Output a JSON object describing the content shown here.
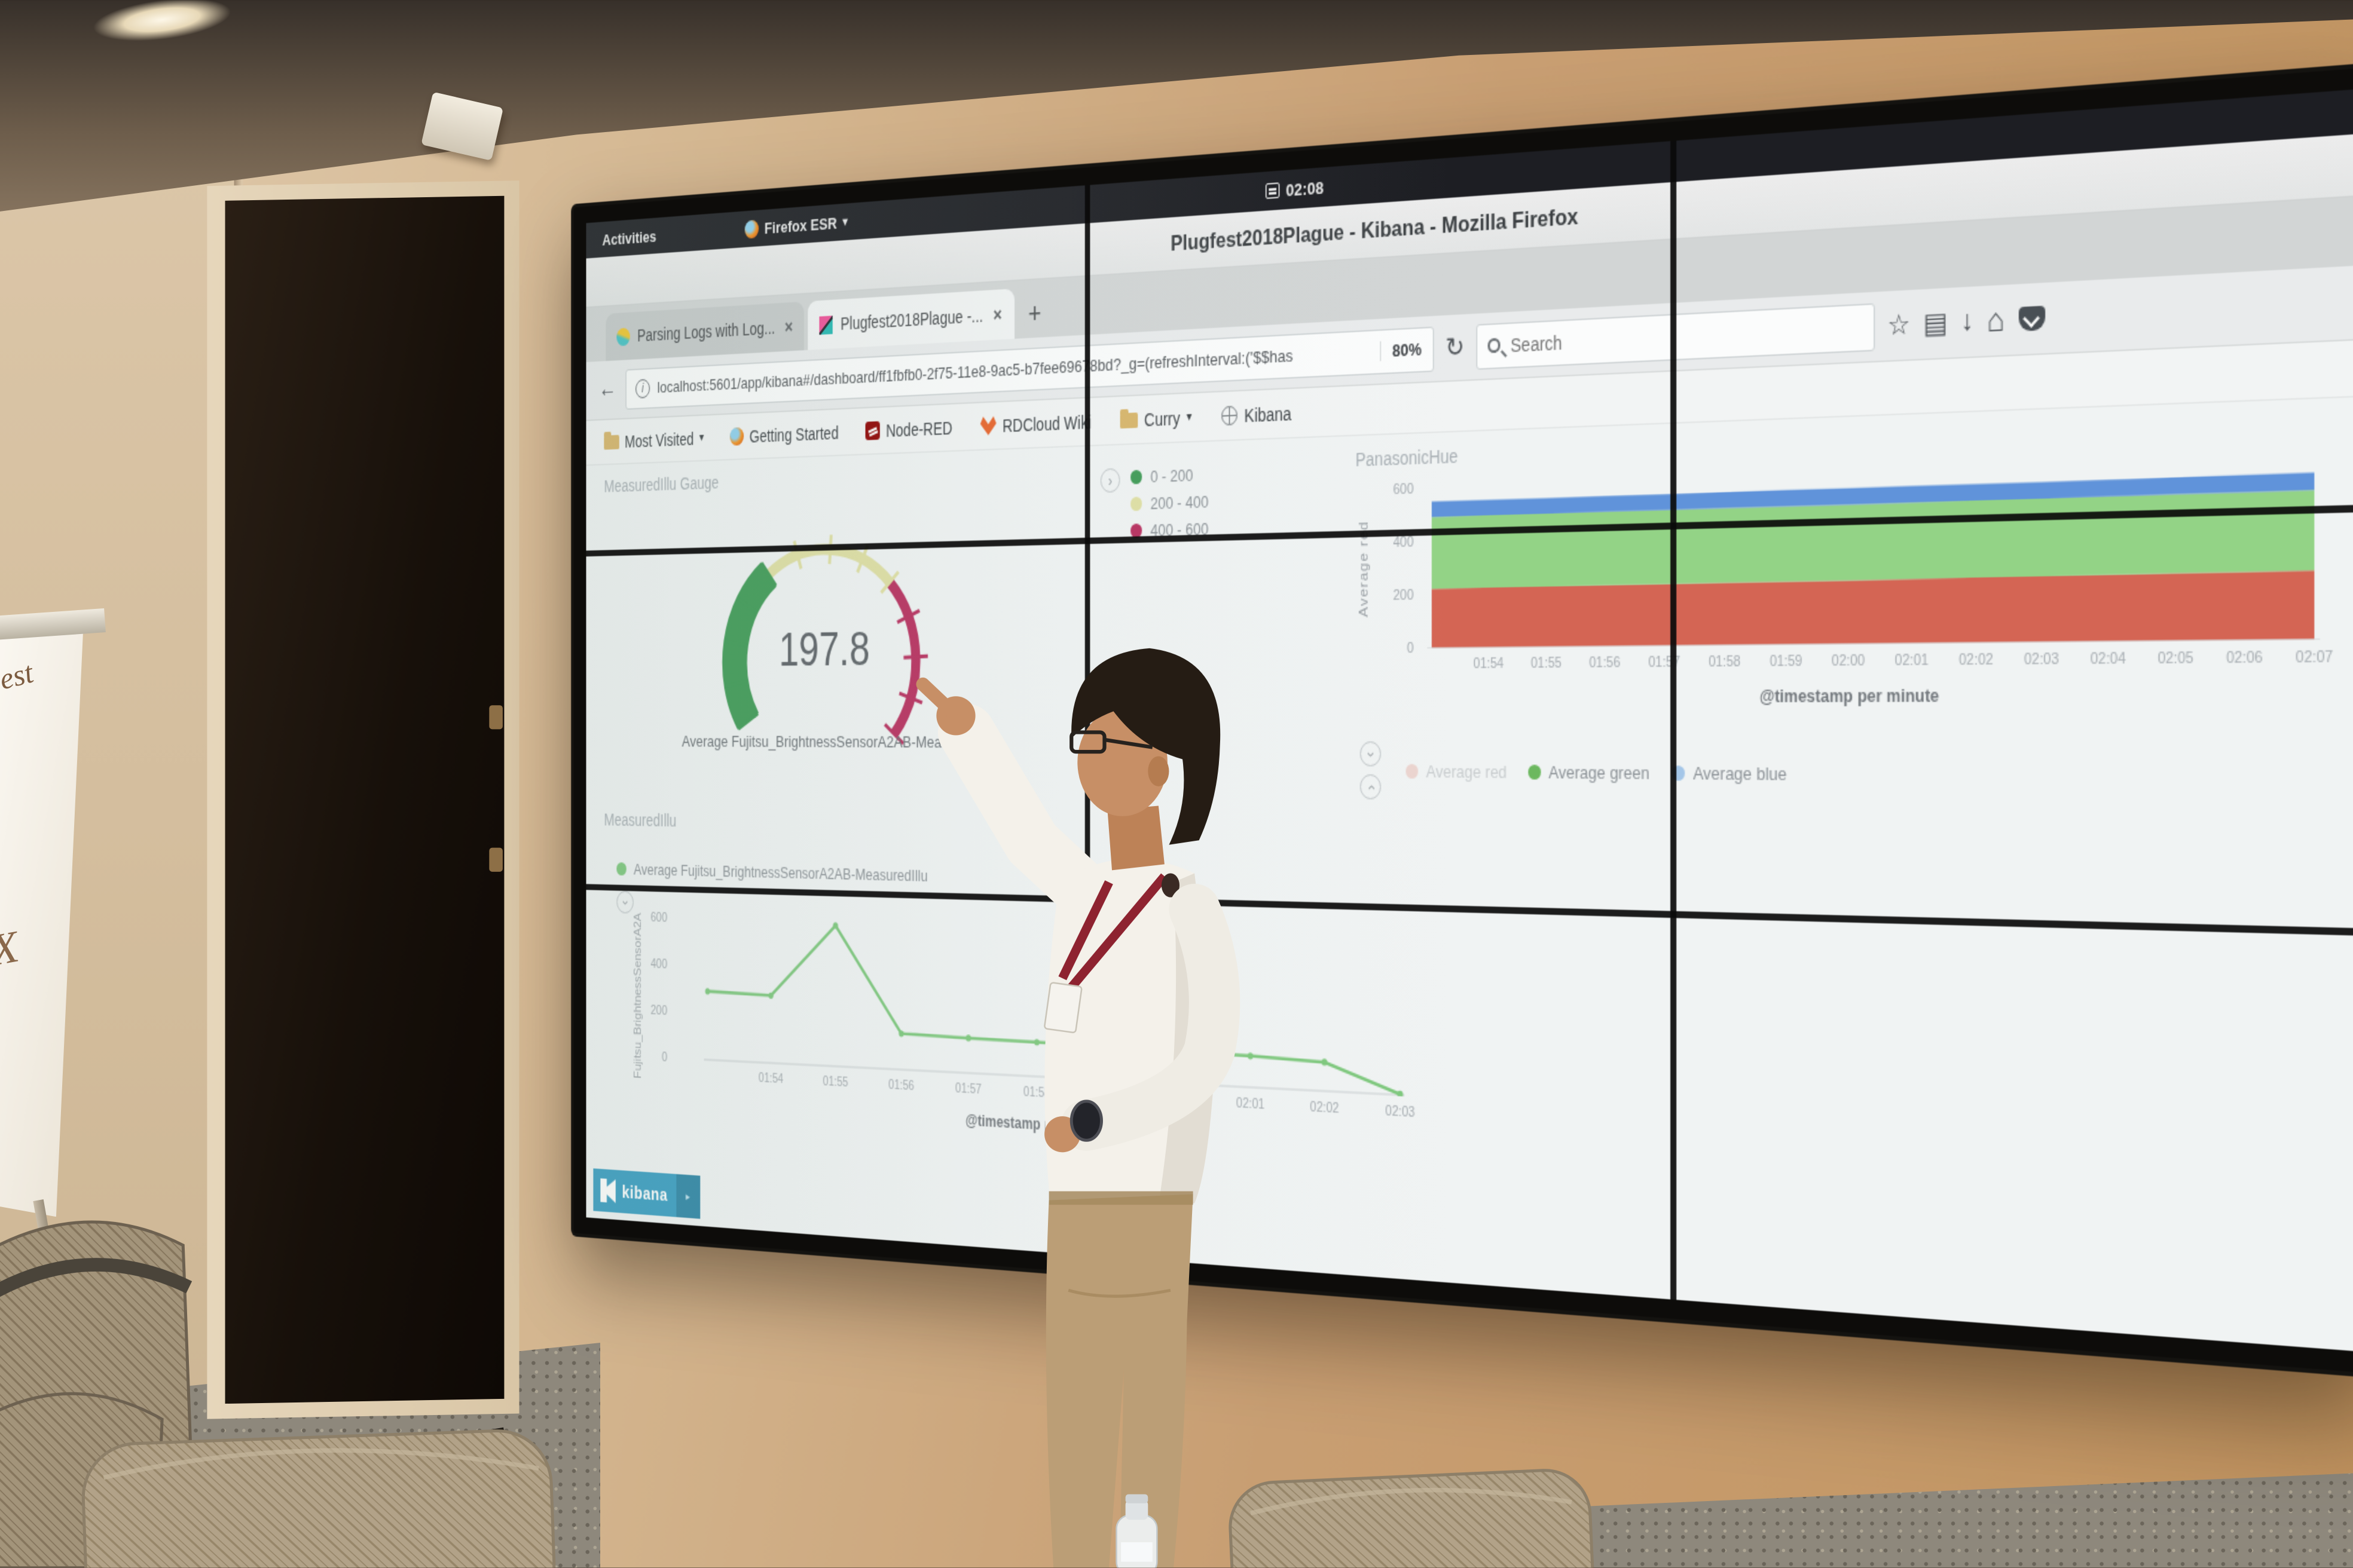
{
  "scene": {
    "flipchart": {
      "line1": "est",
      "line2": "X"
    }
  },
  "top_bar": {
    "activities_label": "Activities",
    "browser_menu_label": "Firefox ESR",
    "menu_caret": "▾",
    "clock": "02:08"
  },
  "window": {
    "title": "Plugfest2018Plague - Kibana - Mozilla Firefox"
  },
  "browser": {
    "tabs": [
      {
        "label": "Parsing Logs with Log...",
        "close": "×"
      },
      {
        "label": "Plugfest2018Plague -...",
        "close": "×"
      }
    ],
    "new_tab_label": "+",
    "back_glyph": "←",
    "reload_glyph": "↻",
    "info_glyph": "i",
    "url": "localhost:5601/app/kibana#/dashboard/ff1fbfb0-2f75-11e8-9ac5-b7fee69678bd?_g=(refreshInterval:('$$has",
    "zoom_level": "80%",
    "search_placeholder": "Search",
    "toolbar_icons": {
      "star": "☆",
      "library": "▤",
      "download": "↓",
      "home": "⌂"
    },
    "bookmarks": [
      {
        "label": "Most Visited",
        "caret": "▾"
      },
      {
        "label": "Getting Started",
        "caret": ""
      },
      {
        "label": "Node-RED",
        "caret": ""
      },
      {
        "label": "RDCloud Wiki",
        "caret": ""
      },
      {
        "label": "Curry",
        "caret": "▾"
      },
      {
        "label": "Kibana",
        "caret": ""
      }
    ]
  },
  "dashboard": {
    "gauge_panel": {
      "title": "MeasuredIllu Gauge",
      "value": "197.8",
      "metric_label": "Average Fujitsu_BrightnessSensorA2AB-MeasuredIllu",
      "legend": [
        {
          "label": "0 - 200",
          "color": "#3e9a55"
        },
        {
          "label": "200 - 400",
          "color": "#dfdfa3"
        },
        {
          "label": "400 - 600",
          "color": "#b82e5e"
        }
      ]
    },
    "hue_panel": {
      "title": "PanasonicHue",
      "ylabel": "Average red",
      "yticks": [
        "600",
        "400",
        "200",
        "0"
      ],
      "xticks": [
        "01:54",
        "01:55",
        "01:56",
        "01:57",
        "01:58",
        "01:59",
        "02:00",
        "02:01",
        "02:02",
        "02:03",
        "02:04",
        "02:05",
        "02:06",
        "02:07"
      ],
      "xlabel": "@timestamp per minute",
      "legend": [
        {
          "label": "Average red",
          "color": "#e5a79b"
        },
        {
          "label": "Average green",
          "color": "#6cb85f"
        },
        {
          "label": "Average blue",
          "color": "#a4c6e8"
        }
      ]
    },
    "line_panel": {
      "title": "MeasuredIllu",
      "legend_label": "Average Fujitsu_BrightnessSensorA2AB-MeasuredIllu",
      "legend_color": "#7ec87d",
      "ylabel": "Fujitsu_BrightnessSensorA2A",
      "yticks": [
        "600",
        "400",
        "200",
        "0"
      ],
      "xticks": [
        "01:54",
        "01:55",
        "01:56",
        "01:57",
        "01:58",
        "01:59",
        "02:00",
        "02:01",
        "02:02",
        "02:03"
      ],
      "xlabel": "@timestamp per minute"
    },
    "kibana_logo_text": "kibana"
  },
  "chart_data": [
    {
      "type": "gauge",
      "title": "MeasuredIllu Gauge",
      "metric": "Average Fujitsu_BrightnessSensorA2AB-MeasuredIllu",
      "value": 197.8,
      "min": 0,
      "max": 600,
      "ranges": [
        {
          "from": 0,
          "to": 200,
          "color": "#3e9a55"
        },
        {
          "from": 200,
          "to": 400,
          "color": "#dfdfa3"
        },
        {
          "from": 400,
          "to": 600,
          "color": "#b82e5e"
        }
      ]
    },
    {
      "type": "area",
      "stacked": true,
      "title": "PanasonicHue",
      "x": [
        "01:53",
        "01:54",
        "01:55",
        "01:56",
        "01:57",
        "01:58",
        "01:59",
        "02:00",
        "02:01",
        "02:02",
        "02:03",
        "02:04",
        "02:05",
        "02:06",
        "02:07"
      ],
      "series": [
        {
          "name": "Average red",
          "color": "#d25f4d",
          "values": [
            224,
            225,
            225,
            226,
            226,
            227,
            228,
            228,
            229,
            230,
            230,
            231,
            232,
            233,
            234
          ]
        },
        {
          "name": "Average green",
          "color": "#8fd181",
          "values": [
            270,
            270,
            270,
            270,
            270,
            270,
            270,
            270,
            270,
            270,
            270,
            270,
            270,
            270,
            270
          ]
        },
        {
          "name": "Average blue",
          "color": "#5a8fd8",
          "values": [
            58,
            58,
            58,
            58,
            58,
            58,
            58,
            58,
            58,
            58,
            58,
            58,
            58,
            58,
            58
          ]
        }
      ],
      "ylabel": "Average red",
      "xlabel": "@timestamp per minute",
      "ylim": [
        0,
        600
      ],
      "legend_position": "bottom"
    },
    {
      "type": "line",
      "title": "MeasuredIllu",
      "x": [
        "01:53",
        "01:54",
        "01:55",
        "01:56",
        "01:57",
        "01:58",
        "01:59",
        "02:00",
        "02:01",
        "02:02",
        "02:03"
      ],
      "series": [
        {
          "name": "Average Fujitsu_BrightnessSensorA2AB-MeasuredIllu",
          "color": "#7ec87d",
          "values": [
            300,
            293,
            600,
            156,
            150,
            146,
            141,
            136,
            130,
            119,
            8
          ]
        }
      ],
      "ylabel": "Fujitsu_BrightnessSensorA2A",
      "xlabel": "@timestamp per minute",
      "ylim": [
        0,
        620
      ]
    }
  ]
}
